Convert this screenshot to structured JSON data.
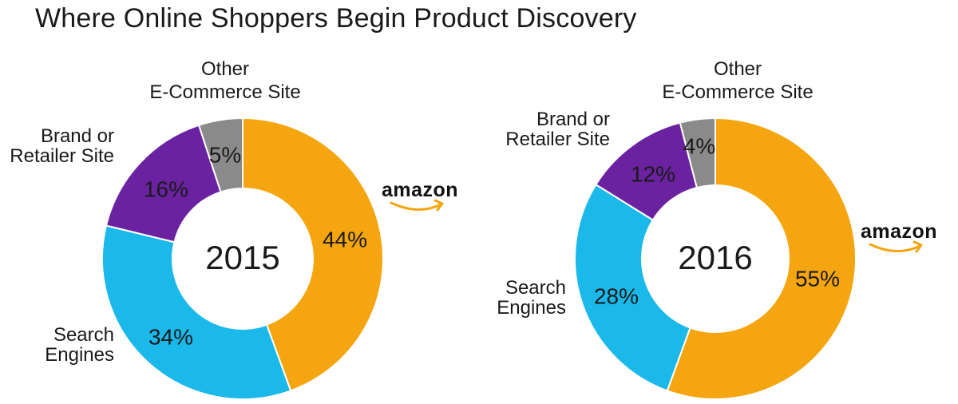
{
  "title": "Where Online Shoppers Begin Product Discovery",
  "colors": {
    "amazon": "#F5A50F",
    "search_engines": "#1AB9EA",
    "brand_or_retailer": "#6B22A0",
    "other_ecommerce": "#8A8A8A",
    "logo_smile": "#F5A50F",
    "text": "#1A1A1A"
  },
  "chart_data": [
    {
      "type": "pie",
      "variant": "donut",
      "center_label": "2015",
      "slices": [
        {
          "category": "amazon",
          "label_lines": [],
          "value": 44,
          "value_label": "44%",
          "color_key": "amazon"
        },
        {
          "category": "search",
          "label_lines": [
            "Search",
            "Engines"
          ],
          "value": 34,
          "value_label": "34%",
          "color_key": "search_engines"
        },
        {
          "category": "brand",
          "label_lines": [
            "Brand or",
            "Retailer Site"
          ],
          "value": 16,
          "value_label": "16%",
          "color_key": "brand_or_retailer"
        },
        {
          "category": "other",
          "label_lines": [
            "Other",
            "E-Commerce Site"
          ],
          "value": 5,
          "value_label": "5%",
          "color_key": "other_ecommerce"
        }
      ],
      "logo": {
        "text": "amazon",
        "icon": "amazon-logo"
      }
    },
    {
      "type": "pie",
      "variant": "donut",
      "center_label": "2016",
      "slices": [
        {
          "category": "amazon",
          "label_lines": [],
          "value": 55,
          "value_label": "55%",
          "color_key": "amazon"
        },
        {
          "category": "search",
          "label_lines": [
            "Search",
            "Engines"
          ],
          "value": 28,
          "value_label": "28%",
          "color_key": "search_engines"
        },
        {
          "category": "brand",
          "label_lines": [
            "Brand or",
            "Retailer Site"
          ],
          "value": 12,
          "value_label": "12%",
          "color_key": "brand_or_retailer"
        },
        {
          "category": "other",
          "label_lines": [
            "Other",
            "E-Commerce Site"
          ],
          "value": 4,
          "value_label": "4%",
          "color_key": "other_ecommerce"
        }
      ],
      "logo": {
        "text": "amazon",
        "icon": "amazon-logo"
      }
    }
  ]
}
